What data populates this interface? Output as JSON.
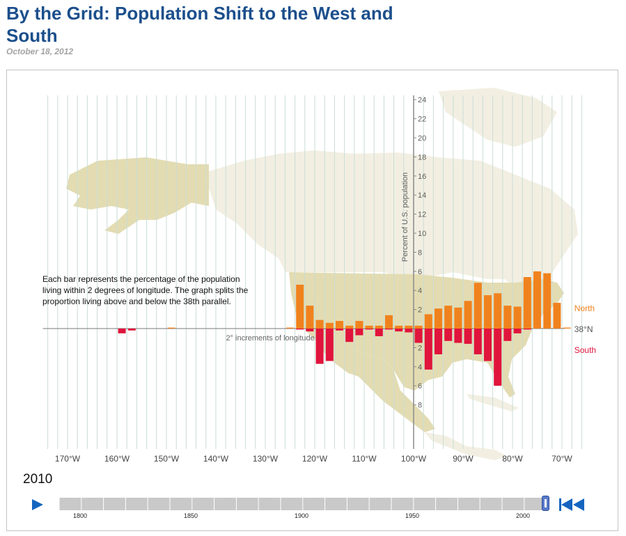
{
  "header": {
    "title": "By the Grid: Population Shift to the West and South",
    "date": "October 18, 2012"
  },
  "annotation": "Each bar represents the percentage of the population living within 2 degrees of longitude. The graph splits the proportion living above and below the 38th parallel.",
  "controls": {
    "year": "2010",
    "timeline_ticks": [
      "1800",
      "1850",
      "1900",
      "1950",
      "2000"
    ],
    "selected_year_fraction": 1.0,
    "play_icon": "play-icon",
    "rewind_icon": "rewind-to-start-icon"
  },
  "colors": {
    "north": "#f0821e",
    "south": "#e0143c",
    "title": "#1c4f8c",
    "land_us": "#e3dcb2",
    "land_other": "#f2efe2"
  },
  "chart_data": {
    "type": "bar",
    "xlabel": "2° increments of longitude",
    "ylabel": "Percent of U.S. population",
    "x_tick_labels": [
      "170°W",
      "160°W",
      "150°W",
      "140°W",
      "130°W",
      "120°W",
      "110°W",
      "100°W",
      "90°W",
      "80°W",
      "70°W"
    ],
    "x_tick_values": [
      -170,
      -160,
      -150,
      -140,
      -130,
      -120,
      -110,
      -100,
      -90,
      -80,
      -70
    ],
    "y_tick_labels_up": [
      "2",
      "4",
      "6",
      "8",
      "10",
      "12",
      "14",
      "16",
      "18",
      "20",
      "22",
      "24"
    ],
    "y_tick_labels_down": [
      "2",
      "4",
      "6",
      "8"
    ],
    "ylim": [
      -8,
      24
    ],
    "xlim": [
      -175,
      -66
    ],
    "baseline_label": "38°N",
    "series": [
      {
        "name": "North",
        "key": "north",
        "longitude": [
          -149,
          -125,
          -123,
          -121,
          -119,
          -117,
          -115,
          -113,
          -111,
          -109,
          -107,
          -105,
          -103,
          -101,
          -99,
          -97,
          -95,
          -93,
          -91,
          -89,
          -87,
          -85,
          -83,
          -81,
          -79,
          -77,
          -75,
          -73,
          -71,
          -69
        ],
        "values": [
          0.1,
          0.1,
          4.6,
          2.4,
          0.9,
          0.6,
          0.8,
          0.3,
          0.8,
          0.3,
          0.3,
          1.4,
          0.3,
          0.3,
          0.3,
          1.5,
          2.1,
          2.4,
          2.2,
          2.9,
          4.8,
          3.5,
          3.7,
          2.4,
          2.3,
          5.4,
          6.0,
          5.8,
          2.7,
          0.1
        ]
      },
      {
        "name": "South",
        "key": "south",
        "longitude": [
          -159,
          -157,
          -123,
          -121,
          -119,
          -117,
          -115,
          -113,
          -111,
          -109,
          -107,
          -105,
          -103,
          -101,
          -99,
          -97,
          -95,
          -93,
          -91,
          -89,
          -87,
          -85,
          -83,
          -81,
          -79,
          -77
        ],
        "values": [
          -0.5,
          -0.2,
          -0.1,
          -0.3,
          -3.7,
          -3.4,
          -0.2,
          -1.4,
          -0.7,
          -0.1,
          -0.8,
          -0.1,
          -0.3,
          -0.4,
          -1.5,
          -4.3,
          -2.7,
          -1.3,
          -1.5,
          -1.6,
          -2.7,
          -3.4,
          -6.0,
          -1.3,
          -0.5,
          -0.1
        ]
      }
    ]
  }
}
